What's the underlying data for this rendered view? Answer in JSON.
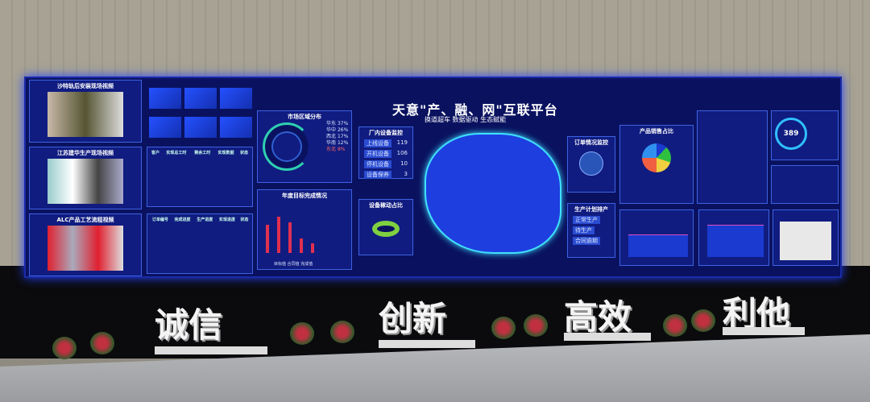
{
  "platform": {
    "title": "天意\"产、融、网\"互联平台",
    "subtitle": "换道超车 数据驱动 生态赋能"
  },
  "videos": [
    {
      "title": "沙特轨后安装现场视频"
    },
    {
      "title": "江苏建华生产现场视频"
    },
    {
      "title": "ALC产品工艺流程视频"
    }
  ],
  "tables": [
    {
      "headers": [
        "客户",
        "实现总工时",
        "剩余工时",
        "实现数据",
        "状态"
      ]
    },
    {
      "headers": [
        "订单编号",
        "完成进度",
        "生产进度",
        "实现进度",
        "状态"
      ]
    }
  ],
  "market": {
    "title": "市场区域分布",
    "items": [
      {
        "region": "华东",
        "pct": "37%"
      },
      {
        "region": "华中",
        "pct": "26%"
      },
      {
        "region": "西北",
        "pct": "17%"
      },
      {
        "region": "华南",
        "pct": "12%"
      },
      {
        "region": "东北",
        "pct": "8%"
      }
    ]
  },
  "annual": {
    "title": "年度目标完成情况",
    "legend": [
      "目标值",
      "合同值",
      "完成值"
    ]
  },
  "equipment": {
    "title": "厂内设备监控",
    "items": [
      {
        "label": "上线设备",
        "value": "119"
      },
      {
        "label": "开机设备",
        "value": "106"
      },
      {
        "label": "停机设备",
        "value": "10"
      },
      {
        "label": "设备保养",
        "value": "3"
      }
    ]
  },
  "utilization": {
    "title": "设备稼动占比"
  },
  "orders": {
    "title": "订单情况监控"
  },
  "plan": {
    "title": "生产计划排产",
    "items": [
      "正常生产",
      "待生产",
      "合同逾期"
    ]
  },
  "sales": {
    "title": "产品销售占比"
  },
  "center_value": "389",
  "slogans": [
    "诚信",
    "创新",
    "高效",
    "利他"
  ],
  "colors": {
    "screen": "#0a1260",
    "accent": "#2450ff"
  }
}
